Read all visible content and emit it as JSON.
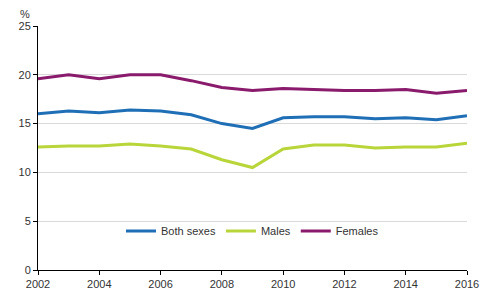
{
  "chart_data": {
    "type": "line",
    "y_label": "%",
    "x": [
      2002,
      2003,
      2004,
      2005,
      2006,
      2007,
      2008,
      2009,
      2010,
      2011,
      2012,
      2013,
      2014,
      2015,
      2016
    ],
    "series": [
      {
        "name": "Both sexes",
        "color": "#1f6fb6",
        "values": [
          16.0,
          16.3,
          16.1,
          16.4,
          16.3,
          15.9,
          15.0,
          14.5,
          15.6,
          15.7,
          15.7,
          15.5,
          15.6,
          15.4,
          15.8
        ]
      },
      {
        "name": "Males",
        "color": "#b8d53a",
        "values": [
          12.6,
          12.7,
          12.7,
          12.9,
          12.7,
          12.4,
          11.3,
          10.5,
          12.4,
          12.8,
          12.8,
          12.5,
          12.6,
          12.6,
          13.0
        ]
      },
      {
        "name": "Females",
        "color": "#8a1a6c",
        "values": [
          19.6,
          20.0,
          19.6,
          20.0,
          20.0,
          19.4,
          18.7,
          18.4,
          18.6,
          18.5,
          18.4,
          18.4,
          18.5,
          18.1,
          18.4
        ]
      }
    ],
    "xlim": [
      2002,
      2016
    ],
    "xticks": [
      2002,
      2004,
      2006,
      2008,
      2010,
      2012,
      2014,
      2016
    ],
    "ylim": [
      0,
      25
    ],
    "yticks": [
      0,
      5,
      10,
      15,
      20,
      25
    ],
    "grid": true,
    "legend": "bottom"
  }
}
